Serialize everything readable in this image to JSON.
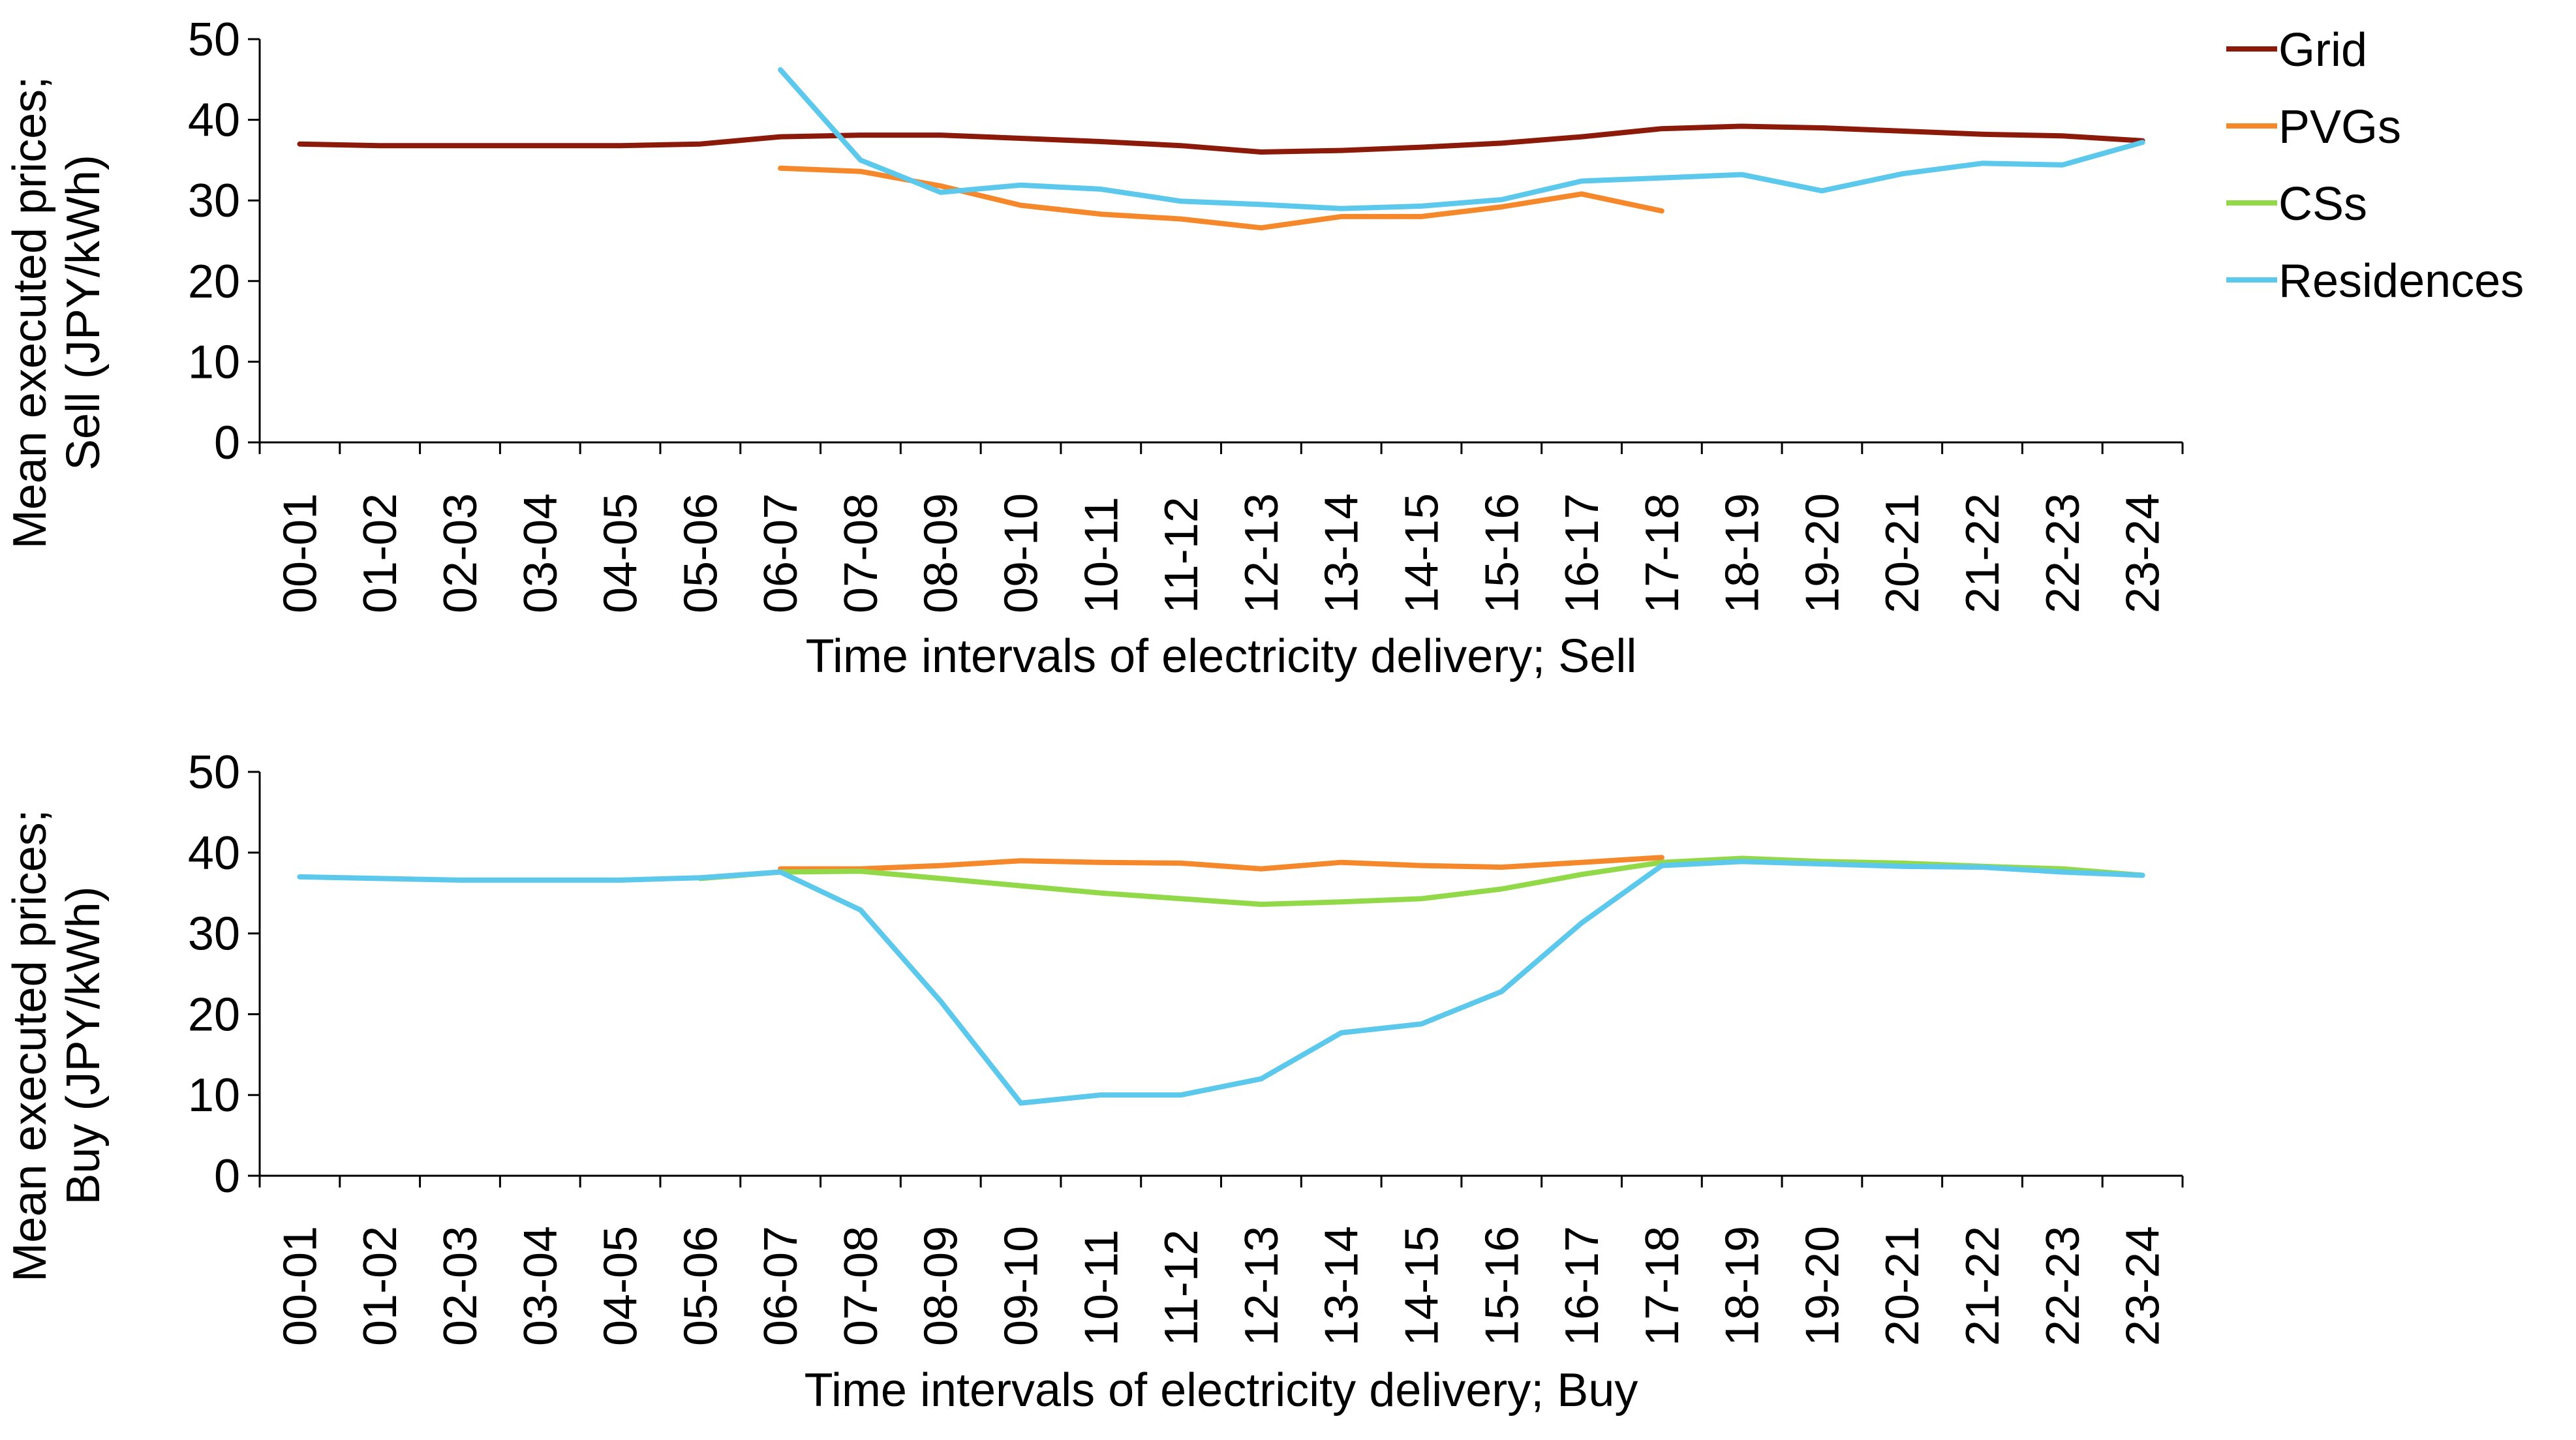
{
  "chart_data": [
    {
      "type": "line",
      "panel": "sell",
      "title": "",
      "xlabel": "Time intervals of electricity delivery; Sell",
      "ylabel_lines": [
        "Mean executed prices;",
        "Sell (JPY/kWh)"
      ],
      "ylim": [
        0,
        50
      ],
      "yticks": [
        0,
        10,
        20,
        30,
        40,
        50
      ],
      "grid": false,
      "categories": [
        "00-01",
        "01-02",
        "02-03",
        "03-04",
        "04-05",
        "05-06",
        "06-07",
        "07-08",
        "08-09",
        "09-10",
        "10-11",
        "11-12",
        "12-13",
        "13-14",
        "14-15",
        "15-16",
        "16-17",
        "17-18",
        "18-19",
        "19-20",
        "20-21",
        "21-22",
        "22-23",
        "23-24"
      ],
      "series": [
        {
          "name": "Grid",
          "color": "#8B1A0A",
          "values": [
            37.0,
            36.8,
            36.8,
            36.8,
            36.8,
            37.0,
            37.9,
            38.1,
            38.1,
            37.7,
            37.3,
            36.8,
            36.0,
            36.2,
            36.6,
            37.1,
            37.9,
            38.9,
            39.2,
            39.0,
            38.6,
            38.2,
            38.0,
            37.4
          ]
        },
        {
          "name": "PVGs",
          "color": "#F5882A",
          "values": [
            null,
            null,
            null,
            null,
            null,
            null,
            34.0,
            33.6,
            31.8,
            29.4,
            28.3,
            27.7,
            26.6,
            28.0,
            28.0,
            29.2,
            30.8,
            28.7,
            null,
            null,
            null,
            null,
            null,
            null
          ]
        },
        {
          "name": "CSs",
          "color": "#92D94A",
          "values": [
            null,
            null,
            null,
            null,
            null,
            null,
            null,
            null,
            null,
            null,
            null,
            null,
            null,
            null,
            null,
            null,
            null,
            null,
            null,
            null,
            null,
            null,
            null,
            null
          ]
        },
        {
          "name": "Residences",
          "color": "#5BC8EC",
          "values": [
            null,
            null,
            null,
            null,
            null,
            null,
            46.2,
            35.0,
            31.0,
            31.9,
            31.4,
            29.9,
            29.5,
            29.0,
            29.3,
            30.1,
            32.4,
            32.8,
            33.2,
            31.2,
            33.3,
            34.6,
            34.4,
            37.2
          ]
        }
      ]
    },
    {
      "type": "line",
      "panel": "buy",
      "title": "",
      "xlabel": "Time intervals of electricity delivery; Buy",
      "ylabel_lines": [
        "Mean executed prices;",
        "Buy (JPY/kWh)"
      ],
      "ylim": [
        0,
        50
      ],
      "yticks": [
        0,
        10,
        20,
        30,
        40,
        50
      ],
      "grid": false,
      "categories": [
        "00-01",
        "01-02",
        "02-03",
        "03-04",
        "04-05",
        "05-06",
        "06-07",
        "07-08",
        "08-09",
        "09-10",
        "10-11",
        "11-12",
        "12-13",
        "13-14",
        "14-15",
        "15-16",
        "16-17",
        "17-18",
        "18-19",
        "19-20",
        "20-21",
        "21-22",
        "22-23",
        "23-24"
      ],
      "series": [
        {
          "name": "Grid",
          "color": "#8B1A0A",
          "values": [
            null,
            null,
            null,
            null,
            null,
            null,
            null,
            null,
            null,
            null,
            null,
            null,
            null,
            null,
            null,
            null,
            null,
            null,
            null,
            null,
            null,
            null,
            null,
            null
          ]
        },
        {
          "name": "PVGs",
          "color": "#F5882A",
          "values": [
            null,
            null,
            null,
            null,
            null,
            null,
            38.0,
            38.0,
            38.4,
            39.0,
            38.8,
            38.7,
            38.0,
            38.8,
            38.4,
            38.2,
            38.8,
            39.4,
            null,
            null,
            null,
            null,
            null,
            null
          ]
        },
        {
          "name": "CSs",
          "color": "#92D94A",
          "values": [
            null,
            null,
            null,
            null,
            null,
            36.8,
            37.6,
            37.7,
            36.8,
            35.9,
            35.0,
            34.3,
            33.6,
            33.9,
            34.3,
            35.5,
            37.3,
            38.8,
            39.3,
            38.9,
            38.7,
            38.3,
            38.0,
            37.2
          ]
        },
        {
          "name": "Residences",
          "color": "#5BC8EC",
          "values": [
            37.0,
            36.8,
            36.6,
            36.6,
            36.6,
            36.9,
            37.6,
            32.9,
            21.6,
            9.0,
            10.0,
            10.0,
            12.0,
            17.7,
            18.8,
            22.8,
            31.3,
            38.4,
            38.9,
            38.6,
            38.3,
            38.2,
            37.6,
            37.2
          ]
        }
      ]
    }
  ],
  "legend": {
    "placement": "top-right",
    "entries": [
      {
        "label": "Grid",
        "color": "#8B1A0A"
      },
      {
        "label": "PVGs",
        "color": "#F5882A"
      },
      {
        "label": "CSs",
        "color": "#92D94A"
      },
      {
        "label": "Residences",
        "color": "#5BC8EC"
      }
    ]
  }
}
